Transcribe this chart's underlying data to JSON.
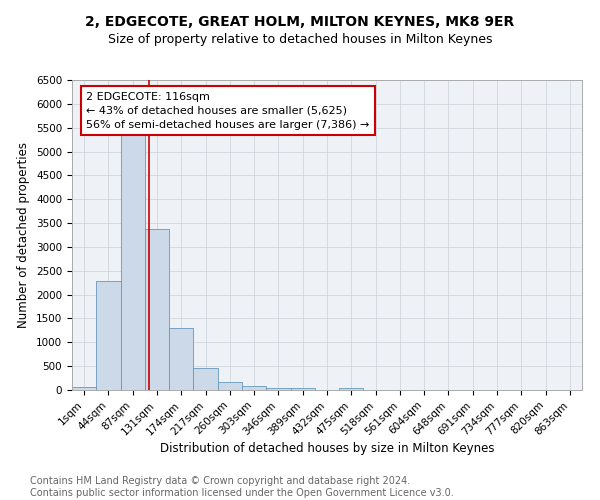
{
  "title": "2, EDGECOTE, GREAT HOLM, MILTON KEYNES, MK8 9ER",
  "subtitle": "Size of property relative to detached houses in Milton Keynes",
  "xlabel": "Distribution of detached houses by size in Milton Keynes",
  "ylabel": "Number of detached properties",
  "bar_color": "#ccd9e8",
  "bar_edge_color": "#6699bb",
  "grid_color": "#c8d0d8",
  "bg_color": "#eef2f6",
  "categories": [
    "1sqm",
    "44sqm",
    "87sqm",
    "131sqm",
    "174sqm",
    "217sqm",
    "260sqm",
    "303sqm",
    "346sqm",
    "389sqm",
    "432sqm",
    "475sqm",
    "518sqm",
    "561sqm",
    "604sqm",
    "648sqm",
    "691sqm",
    "734sqm",
    "777sqm",
    "820sqm",
    "863sqm"
  ],
  "values": [
    60,
    2280,
    5450,
    3380,
    1290,
    460,
    178,
    90,
    50,
    40,
    0,
    40,
    0,
    0,
    0,
    0,
    0,
    0,
    0,
    0,
    0
  ],
  "ylim": [
    0,
    6500
  ],
  "yticks": [
    0,
    500,
    1000,
    1500,
    2000,
    2500,
    3000,
    3500,
    4000,
    4500,
    5000,
    5500,
    6000,
    6500
  ],
  "marker_label": "2 EDGECOTE: 116sqm",
  "annotation_line1": "← 43% of detached houses are smaller (5,625)",
  "annotation_line2": "56% of semi-detached houses are larger (7,386) →",
  "annotation_box_color": "#cc0000",
  "vline_color": "#cc0000",
  "vline_index": 2.67,
  "footer_line1": "Contains HM Land Registry data © Crown copyright and database right 2024.",
  "footer_line2": "Contains public sector information licensed under the Open Government Licence v3.0.",
  "title_fontsize": 10,
  "subtitle_fontsize": 9,
  "axis_label_fontsize": 8.5,
  "tick_fontsize": 7.5,
  "annotation_fontsize": 8,
  "footer_fontsize": 7
}
